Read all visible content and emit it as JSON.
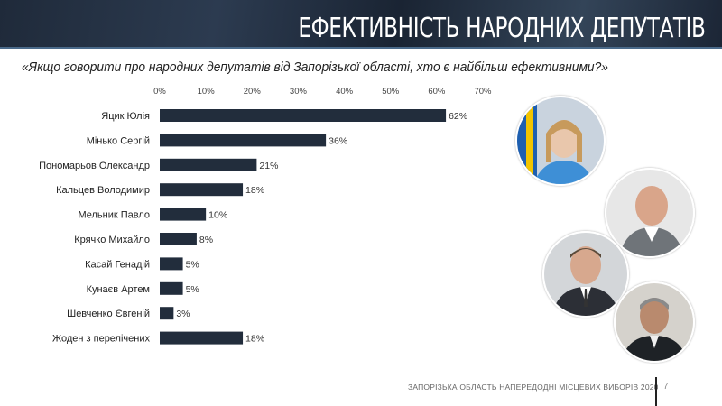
{
  "header": {
    "title": "ЕФЕКТИВНІСТЬ НАРОДНИХ ДЕПУТАТІВ"
  },
  "question": "«Якщо говорити про народних депутатів від Запорізької області, хто є найбільш ефективними?»",
  "footer": {
    "text": "ЗАПОРІЗЬКА ОБЛАСТЬ НАПЕРЕДОДНІ МІСЦЕВИХ ВИБОРІВ 2020",
    "page": "7"
  },
  "colors": {
    "bar": "#222d3c",
    "header": "#24303f"
  },
  "photos": [
    "portrait-woman-flag",
    "portrait-man-bald",
    "portrait-man-suit",
    "portrait-man-gray-hair"
  ],
  "chart_data": {
    "type": "bar",
    "orientation": "horizontal",
    "xlim": [
      0,
      70
    ],
    "x_ticks": [
      "0%",
      "10%",
      "20%",
      "30%",
      "40%",
      "50%",
      "60%",
      "70%"
    ],
    "x_axis_position": "top",
    "grid": false,
    "categories": [
      "Яцик Юлія",
      "Мінько Сергій",
      "Пономарьов Олександр",
      "Кальцев Володимир",
      "Мельник Павло",
      "Крячко Михайло",
      "Касай Генадій",
      "Кунаєв Артем",
      "Шевченко Євгеній",
      "Жоден з перелічених"
    ],
    "values": [
      62,
      36,
      21,
      18,
      10,
      8,
      5,
      5,
      3,
      18
    ],
    "data_labels": [
      "62%",
      "36%",
      "21%",
      "18%",
      "10%",
      "8%",
      "5%",
      "5%",
      "3%",
      "18%"
    ]
  }
}
